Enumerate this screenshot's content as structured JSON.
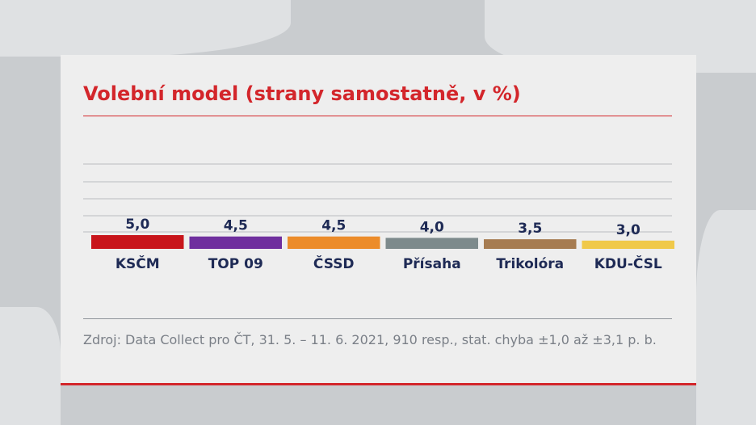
{
  "title": "Volební model (strany samostatně, v %)",
  "source": "Zdroj: Data Collect pro ČT, 31. 5. – 11. 6. 2021, 910 resp., stat. chyba ±1,0 až ±3,1 p. b.",
  "chart_data": {
    "type": "bar",
    "title": "Volební model (strany samostatně, v %)",
    "categories": [
      "KSČM",
      "TOP 09",
      "ČSSD",
      "Přísaha",
      "Trikolóra",
      "KDU-ČSL"
    ],
    "values": [
      5.0,
      4.5,
      4.5,
      4.0,
      3.5,
      3.0
    ],
    "value_labels": [
      "5,0",
      "4,5",
      "4,5",
      "4,0",
      "3,5",
      "3,0"
    ],
    "colors": [
      "#c8151b",
      "#6f2f9e",
      "#ec8c2a",
      "#7d8a8c",
      "#a67c52",
      "#f0c94a"
    ],
    "xlabel": "",
    "ylabel": "",
    "grid": true
  }
}
